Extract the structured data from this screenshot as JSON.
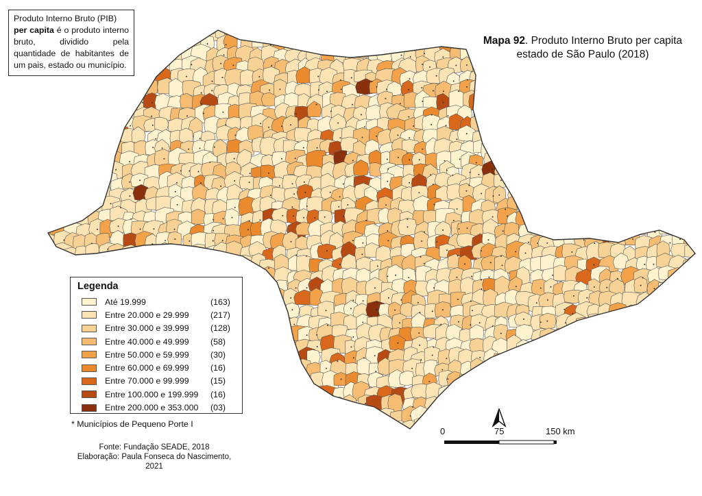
{
  "info": {
    "line1": "Produto Interno Bruto (PIB)",
    "bold": "per capita",
    "rest": " é o produto interno bruto, dividido pela quantidade de habitantes de um pais, estado ou município."
  },
  "title": {
    "prefix": "Mapa 92",
    "text": ". Produto Interno Bruto per capita estado de São Paulo (2018)"
  },
  "legend": {
    "title": "Legenda",
    "classes": [
      {
        "label": "Até 19.999",
        "count": "(163)",
        "color": "#fff3cf"
      },
      {
        "label": "Entre 20.000 e 29.999",
        "count": "(217)",
        "color": "#fbe3b4"
      },
      {
        "label": "Entre 30.000 e 39.999",
        "count": "(128)",
        "color": "#f8d295"
      },
      {
        "label": "Entre 40.000 e 49.999",
        "count": "(58)",
        "color": "#f6bd72"
      },
      {
        "label": "Entre 50.000 e 59.999",
        "count": "(30)",
        "color": "#f3a24a"
      },
      {
        "label": "Entre 60.000 e 69.999",
        "count": "(16)",
        "color": "#ea8a2c"
      },
      {
        "label": "Entre 70.000 e 99.999",
        "count": "(15)",
        "color": "#d9681c"
      },
      {
        "label": "Entre 100.000 e 199.999",
        "count": "(16)",
        "color": "#b84b14"
      },
      {
        "label": "Entre 200.000 e 353.000",
        "count": "(03)",
        "color": "#8a300c"
      }
    ]
  },
  "note": "* Municípios de Pequeno Porte I",
  "credits": {
    "source": "Fonte: Fundação SEADE, 2018",
    "author": "Elaboração: Paula Fonseca do Nascimento, 2021"
  },
  "scale": {
    "zero": "0",
    "mid": "75",
    "end": "150 km"
  },
  "north_icon": "north-arrow-icon"
}
